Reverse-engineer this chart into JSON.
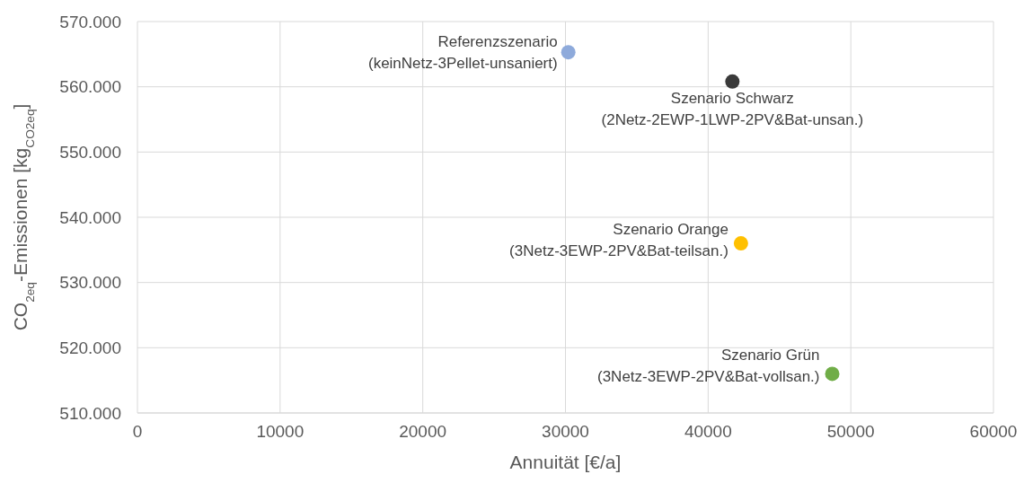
{
  "chart_data": {
    "type": "scatter",
    "xlabel": "Annuität [€/a]",
    "ylabel": "CO$_{2eq}$-Emissionen  [kg$_{CO2eq}$]",
    "x": [
      30200,
      41700,
      42300,
      48700
    ],
    "values": [
      565300,
      560800,
      536000,
      516000
    ],
    "colors": [
      "#8eaadb",
      "#3a3a3a",
      "#ffc000",
      "#70ad47"
    ],
    "xlim": [
      0,
      60000
    ],
    "xticks": [
      0,
      10000,
      20000,
      30000,
      40000,
      50000,
      60000
    ],
    "ylim": [
      510000,
      570000
    ],
    "yticks": [
      {
        "value": 510000,
        "label": "510.000"
      },
      {
        "value": 520000,
        "label": "520.000"
      },
      {
        "value": 530000,
        "label": "530.000"
      },
      {
        "value": 540000,
        "label": "540.000"
      },
      {
        "value": 550000,
        "label": "550.000"
      },
      {
        "value": 560000,
        "label": "560.000"
      },
      {
        "value": 570000,
        "label": "570.000"
      }
    ],
    "grid": true,
    "marker": "circle",
    "legend": false,
    "annotations": [
      {
        "text": "Referenzszenario\n(keinNetz-3Pellet-unsaniert)",
        "x": 30200,
        "y": 565300
      },
      {
        "text": "Szenario Schwarz\n(2Netz-2EWP-1LWP-2PV&Bat-unsan.)",
        "x": 41700,
        "y": 560800
      },
      {
        "text": "Szenario Orange\n(3Netz-3EWP-2PV&Bat-teilsan.)",
        "x": 42300,
        "y": 536000
      },
      {
        "text": "Szenario Grün\n(3Netz-3EWP-2PV&Bat-vollsan.)",
        "x": 48700,
        "y": 516000
      }
    ]
  }
}
